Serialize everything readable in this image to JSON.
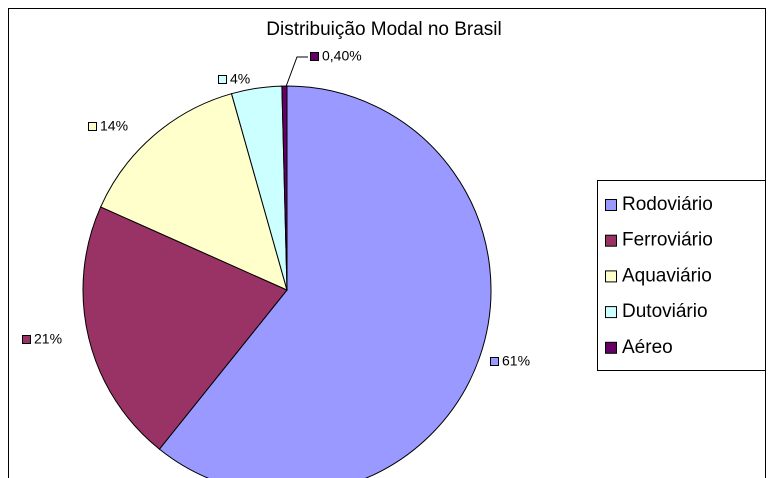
{
  "chart_data": {
    "type": "pie",
    "title": "Distribuição Modal no Brasil",
    "categories": [
      "Rodoviário",
      "Ferroviário",
      "Aquaviário",
      "Dutoviário",
      "Aéreo"
    ],
    "values": [
      61,
      21,
      14,
      4,
      0.4
    ],
    "value_labels": [
      "61%",
      "21%",
      "14%",
      "4%",
      "0,40%"
    ],
    "colors": [
      "#9999ff",
      "#993366",
      "#ffffcc",
      "#ccffff",
      "#660066"
    ],
    "legend": "right"
  }
}
